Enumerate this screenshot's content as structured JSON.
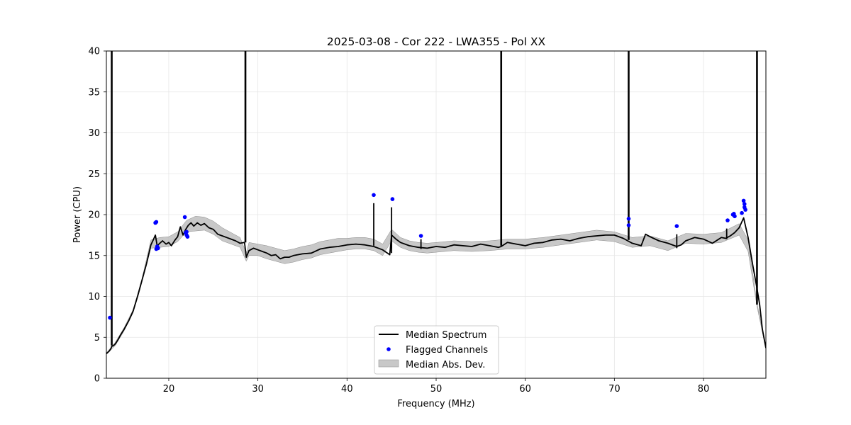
{
  "chart_data": {
    "type": "line",
    "title": "2025-03-08 - Cor 222 - LWA355 - Pol XX",
    "xlabel": "Frequency (MHz)",
    "ylabel": "Power (CPU)",
    "xlim": [
      13.0,
      87.0
    ],
    "ylim": [
      0,
      40
    ],
    "grid": true,
    "legend_position": "bottom-center",
    "x_ticks": [
      20,
      30,
      40,
      50,
      60,
      70,
      80
    ],
    "y_ticks": [
      0,
      5,
      10,
      15,
      20,
      25,
      30,
      35,
      40
    ],
    "colors": {
      "spectrum": "#000000",
      "flagged": "#0000ff",
      "mad_fill": "#b0b0b0"
    },
    "series": [
      {
        "name": "Median Spectrum",
        "kind": "line",
        "x": [
          13.0,
          13.3,
          13.5,
          13.6,
          13.8,
          14.0,
          14.3,
          14.6,
          15.0,
          15.5,
          16.0,
          16.5,
          17.0,
          17.5,
          18.0,
          18.3,
          18.5,
          18.7,
          19.0,
          19.3,
          19.7,
          20.0,
          20.3,
          20.7,
          21.0,
          21.3,
          21.6,
          21.9,
          22.2,
          22.5,
          22.8,
          23.2,
          23.6,
          24.0,
          24.5,
          25.0,
          25.5,
          26.0,
          26.5,
          27.0,
          27.5,
          28.0,
          28.5,
          28.7,
          29.0,
          29.5,
          30.0,
          30.5,
          31.0,
          31.5,
          32.0,
          32.5,
          33.0,
          33.5,
          34.0,
          35.0,
          36.0,
          37.0,
          38.0,
          39.0,
          40.0,
          41.0,
          42.0,
          43.0,
          44.0,
          44.8,
          45.0,
          45.5,
          46.0,
          47.0,
          48.0,
          49.0,
          50.0,
          51.0,
          52.0,
          53.0,
          54.0,
          55.0,
          56.0,
          57.0,
          57.3,
          58.0,
          59.0,
          60.0,
          61.0,
          62.0,
          63.0,
          64.0,
          65.0,
          66.0,
          67.0,
          68.0,
          69.0,
          70.0,
          71.0,
          71.5,
          72.0,
          73.0,
          73.5,
          74.0,
          75.0,
          76.0,
          77.0,
          77.5,
          78.0,
          79.0,
          80.0,
          81.0,
          82.0,
          82.5,
          83.0,
          83.5,
          84.0,
          84.5,
          85.0,
          85.5,
          86.0,
          86.3,
          86.6,
          87.0
        ],
        "values": [
          3.0,
          3.3,
          3.6,
          3.9,
          4.0,
          4.2,
          4.7,
          5.3,
          6.0,
          7.0,
          8.2,
          10.0,
          12.0,
          14.0,
          16.3,
          17.0,
          17.5,
          16.2,
          16.5,
          16.8,
          16.4,
          16.6,
          16.2,
          16.9,
          17.3,
          18.5,
          17.5,
          18.2,
          18.7,
          19.0,
          18.6,
          19.0,
          18.7,
          18.9,
          18.4,
          18.2,
          17.6,
          17.4,
          17.2,
          17.0,
          16.8,
          16.5,
          16.6,
          14.8,
          15.6,
          15.9,
          15.7,
          15.5,
          15.3,
          15.0,
          15.1,
          14.6,
          14.8,
          14.8,
          15.0,
          15.2,
          15.3,
          15.8,
          16.0,
          16.1,
          16.3,
          16.4,
          16.3,
          16.1,
          15.7,
          15.1,
          17.5,
          17.0,
          16.6,
          16.2,
          16.0,
          15.9,
          16.1,
          16.0,
          16.3,
          16.2,
          16.1,
          16.4,
          16.2,
          16.0,
          16.1,
          16.6,
          16.4,
          16.2,
          16.5,
          16.6,
          16.9,
          17.0,
          16.8,
          17.1,
          17.3,
          17.4,
          17.5,
          17.5,
          17.1,
          16.8,
          16.5,
          16.2,
          17.6,
          17.3,
          16.8,
          16.5,
          16.1,
          16.3,
          16.8,
          17.2,
          17.0,
          16.5,
          17.2,
          17.1,
          17.4,
          17.8,
          18.4,
          19.6,
          17.2,
          14.0,
          11.0,
          9.0,
          6.0,
          3.7
        ]
      },
      {
        "name": "Median Abs. Dev.",
        "kind": "band",
        "x": [
          13.0,
          14.0,
          15.0,
          16.0,
          17.0,
          18.0,
          19.0,
          20.0,
          21.0,
          22.0,
          23.0,
          24.0,
          25.0,
          26.0,
          27.0,
          28.0,
          28.7,
          29.0,
          30.0,
          31.0,
          32.0,
          33.0,
          34.0,
          35.0,
          36.0,
          37.0,
          38.0,
          39.0,
          40.0,
          41.0,
          42.0,
          43.0,
          44.0,
          45.0,
          46.0,
          47.0,
          48.0,
          49.0,
          50.0,
          52.0,
          54.0,
          56.0,
          58.0,
          60.0,
          62.0,
          64.0,
          66.0,
          68.0,
          70.0,
          72.0,
          74.0,
          76.0,
          78.0,
          80.0,
          82.0,
          84.0,
          85.0,
          86.0,
          87.0
        ],
        "lower": [
          2.9,
          4.0,
          5.8,
          8.0,
          11.8,
          15.9,
          16.0,
          16.1,
          16.7,
          17.9,
          18.0,
          18.1,
          17.6,
          16.8,
          16.4,
          16.0,
          14.3,
          15.0,
          15.0,
          14.6,
          14.3,
          14.0,
          14.2,
          14.5,
          14.7,
          15.1,
          15.3,
          15.5,
          15.7,
          15.8,
          15.8,
          15.6,
          15.0,
          16.8,
          16.0,
          15.6,
          15.4,
          15.3,
          15.4,
          15.6,
          15.5,
          15.6,
          15.8,
          15.8,
          16.0,
          16.3,
          16.6,
          16.9,
          16.7,
          16.0,
          16.2,
          15.6,
          16.5,
          16.4,
          16.6,
          17.5,
          15.5,
          8.8,
          3.6
        ],
        "upper": [
          3.1,
          4.4,
          6.2,
          8.4,
          12.2,
          16.9,
          17.2,
          17.3,
          17.9,
          19.3,
          19.8,
          19.7,
          19.2,
          18.4,
          17.8,
          17.2,
          15.3,
          16.6,
          16.4,
          16.2,
          15.9,
          15.6,
          15.8,
          16.1,
          16.3,
          16.7,
          16.9,
          17.1,
          17.1,
          17.2,
          17.2,
          17.0,
          16.4,
          18.2,
          17.2,
          16.8,
          16.6,
          16.5,
          16.6,
          16.8,
          16.7,
          16.8,
          17.0,
          17.0,
          17.2,
          17.5,
          17.8,
          18.1,
          17.9,
          17.2,
          17.4,
          16.8,
          17.7,
          17.6,
          17.8,
          18.9,
          16.9,
          9.2,
          3.8
        ]
      },
      {
        "name": "Flagged Channels",
        "kind": "scatter",
        "x": [
          13.4,
          18.5,
          18.6,
          18.6,
          18.7,
          18.8,
          21.8,
          21.9,
          22.0,
          22.0,
          22.1,
          43.0,
          45.1,
          48.3,
          71.6,
          71.6,
          77.0,
          82.7,
          83.3,
          83.4,
          83.5,
          84.3,
          84.5,
          84.6,
          84.6,
          84.7
        ],
        "values": [
          7.4,
          19.0,
          19.1,
          15.8,
          16.1,
          15.9,
          19.7,
          17.8,
          17.5,
          17.9,
          17.3,
          22.4,
          21.9,
          17.4,
          19.5,
          18.7,
          18.6,
          19.3,
          20.0,
          20.1,
          19.8,
          20.2,
          21.7,
          21.3,
          20.9,
          20.6
        ]
      }
    ],
    "spikes": [
      {
        "x": 13.6,
        "top": 40,
        "base": 4.0
      },
      {
        "x": 28.6,
        "top": 40,
        "base": 16.6
      },
      {
        "x": 43.0,
        "top": 21.4,
        "base": 16.2
      },
      {
        "x": 45.0,
        "top": 20.9,
        "base": 15.3
      },
      {
        "x": 48.3,
        "top": 17.0,
        "base": 15.8
      },
      {
        "x": 57.3,
        "top": 40,
        "base": 16.2
      },
      {
        "x": 71.6,
        "top": 40,
        "base": 16.9
      },
      {
        "x": 77.0,
        "top": 17.6,
        "base": 15.9
      },
      {
        "x": 82.6,
        "top": 18.3,
        "base": 17.0
      },
      {
        "x": 86.0,
        "top": 40,
        "base": 9.0
      }
    ],
    "legend": [
      "Median Spectrum",
      "Flagged Channels",
      "Median Abs. Dev."
    ]
  }
}
